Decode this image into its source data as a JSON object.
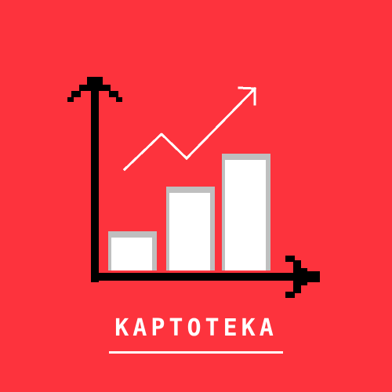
{
  "logo": {
    "background_color": "#fd333d",
    "axis_color": "#000000",
    "bar_color": "#ffffff",
    "bar_shadow_color": "#bfbfbf",
    "trend_color": "#ffffff",
    "icon": "growth-chart-icon",
    "bar_levels": [
      0.3,
      0.65,
      0.9
    ]
  },
  "brand": {
    "name": "КАРТОТЕКА"
  }
}
